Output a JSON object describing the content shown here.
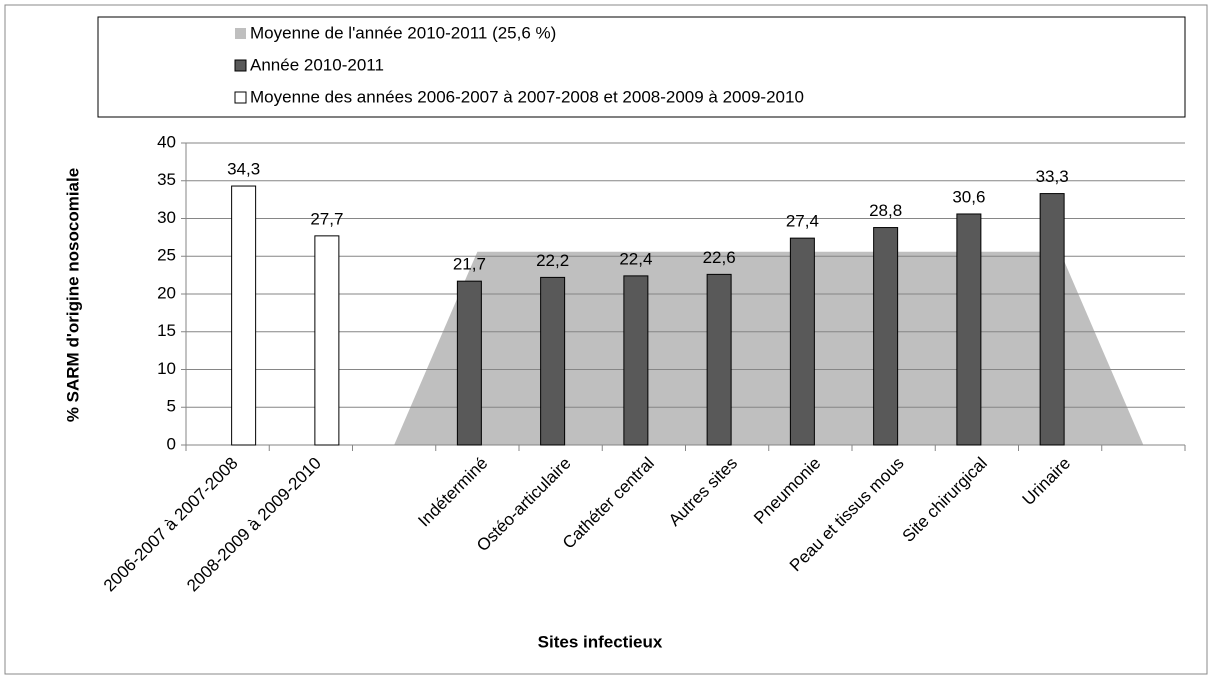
{
  "chart_data": {
    "type": "bar",
    "ylabel": "% SARM d'origine nosocomiale",
    "xlabel": "Sites infectieux",
    "categories": [
      "2006-2007 à 2007-2008",
      "2008-2009 à 2009-2010",
      null,
      "Indéterminé",
      "Ostéo-articulaire",
      "Cathéter central",
      "Autres sites",
      "Pneumonie",
      "Peau et tissus mous",
      "Site chirurgical",
      "Urinaire",
      null
    ],
    "series": [
      {
        "name": "Moyenne de l'année 2010-2011 (25,6 %)",
        "type": "area",
        "color": "#bfbfbf",
        "values": [
          null,
          null,
          0,
          25.6,
          25.6,
          25.6,
          25.6,
          25.6,
          25.6,
          25.6,
          25.6,
          0
        ]
      },
      {
        "name": "Année 2010-2011",
        "type": "bar",
        "color": "#595959",
        "values": [
          null,
          null,
          null,
          21.7,
          22.2,
          22.4,
          22.6,
          27.4,
          28.8,
          30.6,
          33.3,
          null
        ],
        "value_labels": [
          null,
          null,
          null,
          "21,7",
          "22,2",
          "22,4",
          "22,6",
          "27,4",
          "28,8",
          "30,6",
          "33,3",
          null
        ]
      },
      {
        "name": "Moyenne des années 2006-2007 à 2007-2008 et 2008-2009 à 2009-2010",
        "type": "bar",
        "color": "#ffffff",
        "values": [
          34.3,
          27.7,
          null,
          null,
          null,
          null,
          null,
          null,
          null,
          null,
          null,
          null
        ],
        "value_labels": [
          "34,3",
          "27,7",
          null,
          null,
          null,
          null,
          null,
          null,
          null,
          null,
          null,
          null
        ]
      }
    ],
    "ylim": [
      0,
      40
    ],
    "yticks": [
      0,
      5,
      10,
      15,
      20,
      25,
      30,
      35,
      40
    ],
    "grid": true,
    "legend": "top"
  }
}
